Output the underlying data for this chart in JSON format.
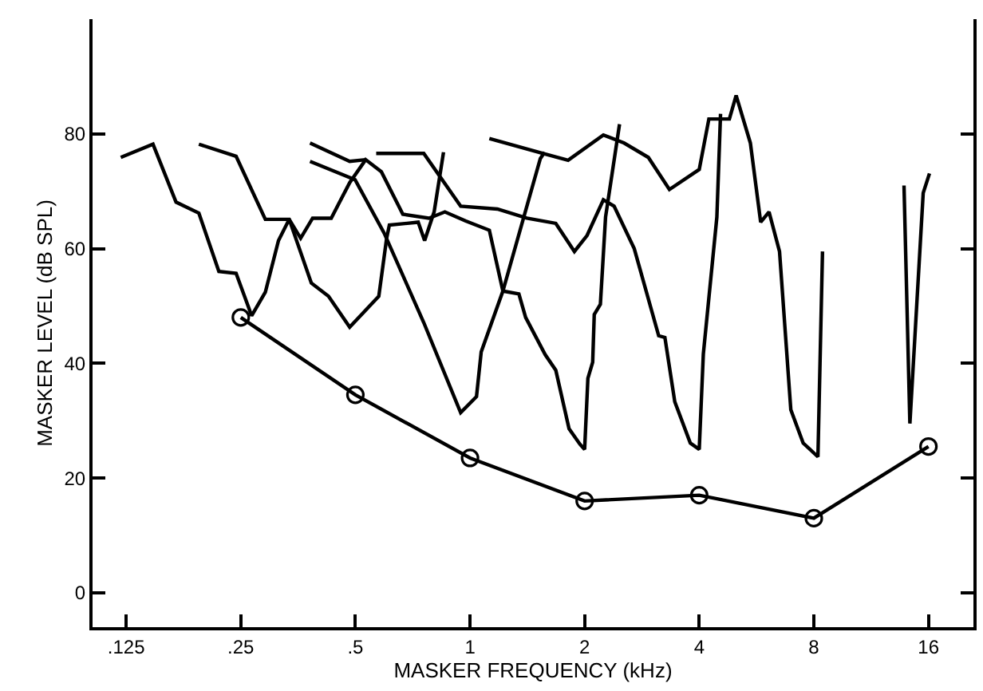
{
  "chart_data": {
    "type": "line",
    "xlabel": "MASKER FREQUENCY (kHz)",
    "ylabel": "MASKER LEVEL (dB SPL)",
    "log": "x",
    "line_style": "solid",
    "xlim": [
      0.102,
      21
    ],
    "xticks": [
      {
        "value": 0.125,
        "label": ".125"
      },
      {
        "value": 0.25,
        "label": ".25"
      },
      {
        "value": 0.5,
        "label": ".5"
      },
      1,
      2,
      4,
      8,
      16
    ],
    "ylim": [
      -6,
      100
    ],
    "yticks": [
      0,
      20,
      40,
      60,
      80
    ],
    "series": [
      {
        "color": "#000000",
        "marker": "none",
        "x": [
          0.121,
          0.147,
          0.169,
          0.194,
          0.219,
          0.243,
          0.267,
          0.29,
          0.314,
          0.335,
          0.359,
          0.386,
          0.432,
          0.483,
          0.532,
          0.585,
          0.666,
          0.78,
          0.859,
          0.975,
          1.124,
          1.22,
          1.344,
          1.4,
          1.576,
          1.68,
          1.82,
          1.944,
          2.0,
          2.04,
          2.1,
          2.12,
          2.2,
          2.27,
          2.47
        ],
        "values": [
          75.9,
          78.2,
          68.1,
          66.2,
          56.0,
          55.7,
          48.3,
          52.4,
          61.4,
          65.1,
          61.8,
          65.3,
          65.3,
          71.5,
          75.5,
          73.4,
          66.0,
          65.3,
          66.4,
          64.8,
          63.2,
          52.6,
          52.1,
          48.0,
          41.5,
          38.8,
          28.6,
          25.9,
          25.0,
          37.4,
          40.2,
          48.5,
          50.3,
          65.5,
          81.7
        ]
      },
      {
        "color": "#000000",
        "marker": "none",
        "x": [
          0.194,
          0.243,
          0.29,
          0.335,
          0.383,
          0.425,
          0.483,
          0.576,
          0.604,
          0.614,
          0.731,
          0.76,
          0.805,
          0.852
        ],
        "values": [
          78.2,
          76.1,
          65.1,
          65.1,
          54.0,
          51.7,
          46.3,
          51.7,
          61.8,
          64.1,
          64.6,
          61.4,
          66.4,
          76.8
        ]
      },
      {
        "color": "#000000",
        "marker": "none",
        "x": [
          0.38,
          0.483,
          0.532
        ],
        "values": [
          78.4,
          75.2,
          75.5
        ]
      },
      {
        "color": "#000000",
        "marker": "none",
        "x": [
          0.38,
          0.499,
          0.595,
          0.756,
          0.945,
          1.04,
          1.07,
          1.22,
          1.53,
          1.57
        ],
        "values": [
          75.2,
          72.0,
          62.7,
          47.1,
          31.4,
          34.2,
          42.0,
          52.6,
          75.7,
          76.8
        ]
      },
      {
        "color": "#000000",
        "marker": "none",
        "x": [
          0.567,
          0.756,
          0.945,
          1.18,
          1.41,
          1.68,
          1.88,
          2.03,
          2.24,
          2.39,
          2.7,
          3.13,
          3.25,
          3.45,
          3.79,
          4.0,
          4.1,
          4.45,
          4.55
        ],
        "values": [
          76.6,
          76.6,
          67.4,
          66.9,
          65.3,
          64.4,
          59.5,
          62.3,
          68.5,
          67.4,
          60.0,
          44.8,
          44.5,
          33.3,
          26.1,
          25.0,
          41.6,
          65.5,
          83.5
        ]
      },
      {
        "color": "#000000",
        "marker": "none",
        "x": [
          1.124,
          1.55,
          1.81,
          2.24,
          2.54,
          2.94,
          3.34,
          4.0,
          4.24,
          4.8,
          5.0,
          5.45,
          5.8,
          6.1,
          6.5,
          6.96,
          7.5,
          8.2,
          8.43
        ],
        "values": [
          79.2,
          76.6,
          75.4,
          79.8,
          78.4,
          75.9,
          70.3,
          73.8,
          82.6,
          82.6,
          86.7,
          78.4,
          64.6,
          66.4,
          59.5,
          31.9,
          26.1,
          23.7,
          59.5
        ]
      },
      {
        "color": "#000000",
        "marker": "none",
        "x": [
          13.8,
          14.3,
          15.5,
          16.1
        ],
        "values": [
          71.0,
          29.5,
          69.7,
          73.1
        ]
      },
      {
        "color": "#000000",
        "marker": "circle",
        "x": [
          0.25,
          0.5,
          1,
          2,
          4,
          8,
          16
        ],
        "values": [
          48,
          34.5,
          23.5,
          16,
          17,
          13,
          25.5
        ]
      }
    ]
  }
}
